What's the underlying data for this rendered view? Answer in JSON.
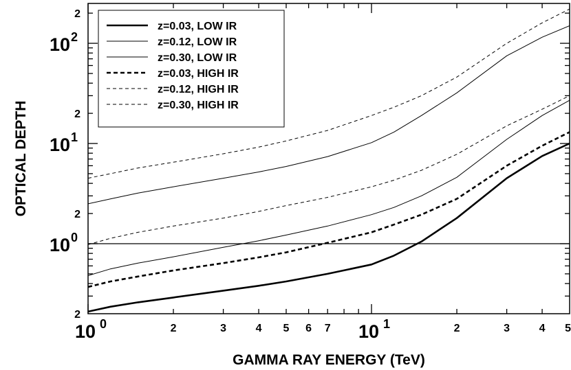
{
  "chart_data": {
    "type": "line",
    "title": "",
    "xlabel": "GAMMA RAY ENERGY (TeV)",
    "ylabel": "OPTICAL DEPTH",
    "xscale": "log",
    "yscale": "log",
    "xlim": [
      1,
      50
    ],
    "ylim": [
      0.2,
      250
    ],
    "grid": false,
    "legend_position": "top-left",
    "x_major_ticks": [
      {
        "value": 1,
        "base": "10",
        "exp": "0"
      },
      {
        "value": 10,
        "base": "10",
        "exp": "1"
      }
    ],
    "x_minor_ticks": [
      {
        "value": 2,
        "label": "2"
      },
      {
        "value": 3,
        "label": "3"
      },
      {
        "value": 4,
        "label": "4"
      },
      {
        "value": 5,
        "label": "5"
      },
      {
        "value": 6,
        "label": "6"
      },
      {
        "value": 7,
        "label": "7"
      },
      {
        "value": 20,
        "label": "2"
      },
      {
        "value": 30,
        "label": "3"
      },
      {
        "value": 40,
        "label": "4"
      },
      {
        "value": 50,
        "label": "5"
      }
    ],
    "y_major_ticks": [
      {
        "value": 1,
        "base": "10",
        "exp": "0"
      },
      {
        "value": 10,
        "base": "10",
        "exp": "1"
      },
      {
        "value": 100,
        "base": "10",
        "exp": "2"
      }
    ],
    "y_minor_ticks": [
      {
        "value": 0.2,
        "label": "2"
      },
      {
        "value": 2,
        "label": "2"
      },
      {
        "value": 20,
        "label": "2"
      },
      {
        "value": 200,
        "label": "2"
      }
    ],
    "reference_lines": [
      {
        "axis": "y",
        "value": 1.0
      }
    ],
    "series": [
      {
        "name": "z=0.03, LOW IR",
        "style": "solid",
        "weight": "thick",
        "x": [
          1,
          1.2,
          1.5,
          2,
          3,
          4,
          5,
          7,
          10,
          12,
          15,
          20,
          30,
          40,
          50
        ],
        "y": [
          0.21,
          0.235,
          0.26,
          0.29,
          0.34,
          0.38,
          0.42,
          0.5,
          0.62,
          0.76,
          1.05,
          1.8,
          4.5,
          7.5,
          10
        ]
      },
      {
        "name": "z=0.12, LOW IR",
        "style": "solid",
        "weight": "thin",
        "x": [
          1,
          1.2,
          1.5,
          2,
          3,
          4,
          5,
          7,
          10,
          12,
          15,
          20,
          30,
          40,
          50
        ],
        "y": [
          0.48,
          0.56,
          0.64,
          0.74,
          0.92,
          1.07,
          1.22,
          1.5,
          1.95,
          2.3,
          3.0,
          4.6,
          11,
          19,
          27
        ]
      },
      {
        "name": "z=0.30, LOW IR",
        "style": "solid",
        "weight": "thin",
        "x": [
          1,
          1.2,
          1.5,
          2,
          3,
          4,
          5,
          7,
          10,
          12,
          15,
          20,
          30,
          40,
          50
        ],
        "y": [
          2.5,
          2.8,
          3.2,
          3.7,
          4.5,
          5.2,
          5.9,
          7.4,
          10.2,
          13,
          19,
          32,
          75,
          115,
          150
        ]
      },
      {
        "name": "z=0.03, HIGH IR",
        "style": "dashed",
        "weight": "thick",
        "x": [
          1,
          1.2,
          1.5,
          2,
          3,
          4,
          5,
          7,
          10,
          12,
          15,
          20,
          30,
          40,
          50
        ],
        "y": [
          0.37,
          0.42,
          0.47,
          0.54,
          0.64,
          0.73,
          0.82,
          1.02,
          1.3,
          1.55,
          1.95,
          2.8,
          6,
          9.5,
          13
        ]
      },
      {
        "name": "z=0.12, HIGH IR",
        "style": "dashed",
        "weight": "thin",
        "x": [
          1,
          1.2,
          1.5,
          2,
          3,
          4,
          5,
          7,
          10,
          12,
          15,
          20,
          30,
          40,
          50
        ],
        "y": [
          0.98,
          1.13,
          1.3,
          1.5,
          1.8,
          2.1,
          2.4,
          2.9,
          3.7,
          4.3,
          5.4,
          7.8,
          15,
          22,
          30
        ]
      },
      {
        "name": "z=0.30, HIGH IR",
        "style": "dashed",
        "weight": "thin",
        "x": [
          1,
          1.2,
          1.5,
          2,
          3,
          4,
          5,
          7,
          10,
          12,
          15,
          20,
          30,
          40,
          50
        ],
        "y": [
          4.5,
          5.0,
          5.7,
          6.5,
          7.9,
          9.2,
          10.6,
          13.5,
          19,
          23,
          30,
          46,
          100,
          160,
          220
        ]
      }
    ]
  }
}
